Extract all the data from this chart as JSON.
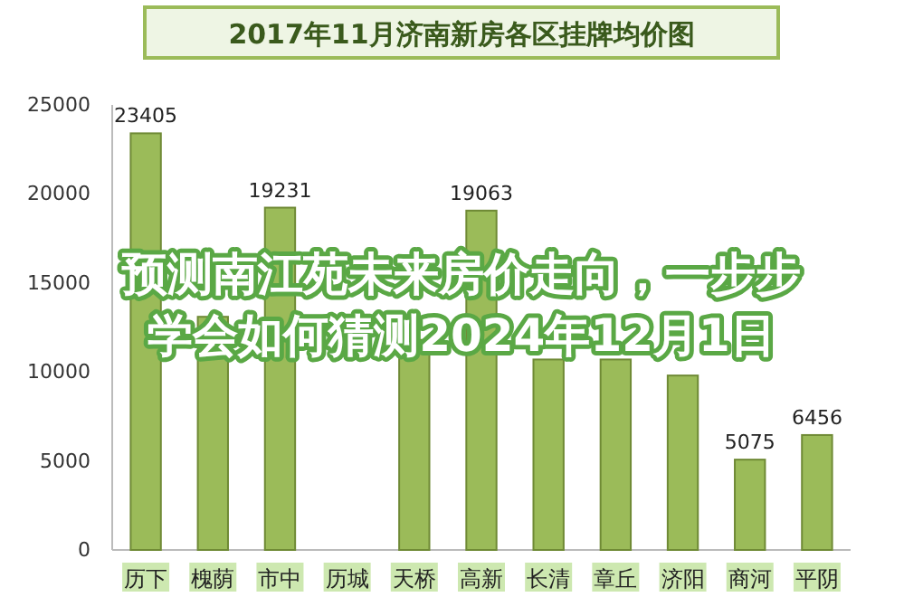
{
  "chart_data": {
    "type": "bar",
    "title": "2017年11月济南新房各区挂牌均价图",
    "categories": [
      "历下",
      "槐荫",
      "市中",
      "历城",
      "天桥",
      "高新",
      "长清",
      "章丘",
      "济阳",
      "商河",
      "平阴"
    ],
    "values": [
      23405,
      13100,
      19231,
      null,
      11800,
      19063,
      10700,
      10700,
      9800,
      5075,
      6456
    ],
    "value_labels": [
      "23405",
      null,
      "19231",
      null,
      null,
      "19063",
      null,
      null,
      null,
      "5075",
      "6456"
    ],
    "color": "#9bbb59",
    "ylim": [
      0,
      25000
    ],
    "yticks": [
      0,
      5000,
      10000,
      15000,
      20000,
      25000
    ],
    "grid": false,
    "annotations": [
      "预测南江苑未来房价走向，一步步学会如何猜测2024年12月1日"
    ]
  }
}
